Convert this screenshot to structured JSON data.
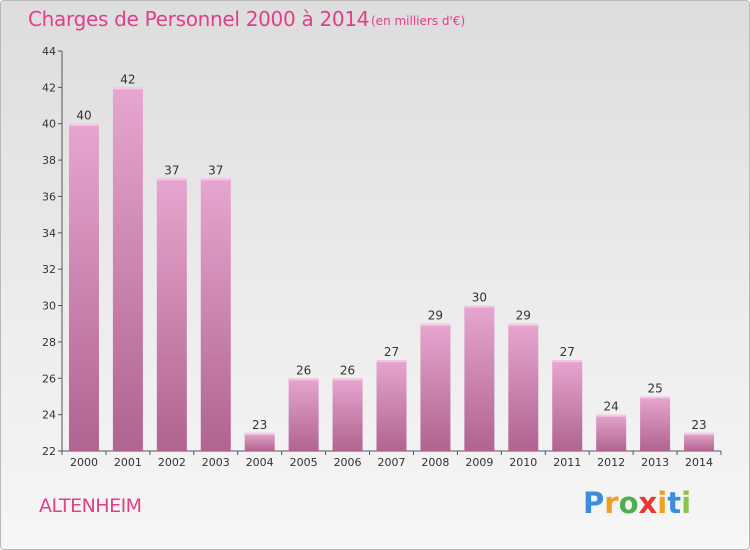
{
  "chart_data": {
    "type": "bar",
    "title": "Charges de Personnel 2000 à 2014",
    "subtitle": "(en milliers d'€)",
    "categories": [
      "2000",
      "2001",
      "2002",
      "2003",
      "2004",
      "2005",
      "2006",
      "2007",
      "2008",
      "2009",
      "2010",
      "2011",
      "2012",
      "2013",
      "2014"
    ],
    "values": [
      40,
      42,
      37,
      37,
      23,
      26,
      26,
      27,
      29,
      30,
      29,
      27,
      24,
      25,
      23
    ],
    "ylim": [
      22,
      44
    ],
    "yticks": [
      22,
      24,
      26,
      28,
      30,
      32,
      34,
      36,
      38,
      40,
      42,
      44
    ],
    "grid": false,
    "bar_color_top": "#e6a6cf",
    "bar_color_bottom": "#b0648f"
  },
  "place_name": "ALTENHEIM",
  "brand": {
    "letters": [
      "P",
      "r",
      "o",
      "x",
      "i",
      "t",
      "i"
    ],
    "colors": [
      "#3a8fd8",
      "#f0a020",
      "#4caf50",
      "#e53935",
      "#f0a020",
      "#3a8fd8",
      "#8bc34a"
    ]
  },
  "accent_color": "#e0408a"
}
